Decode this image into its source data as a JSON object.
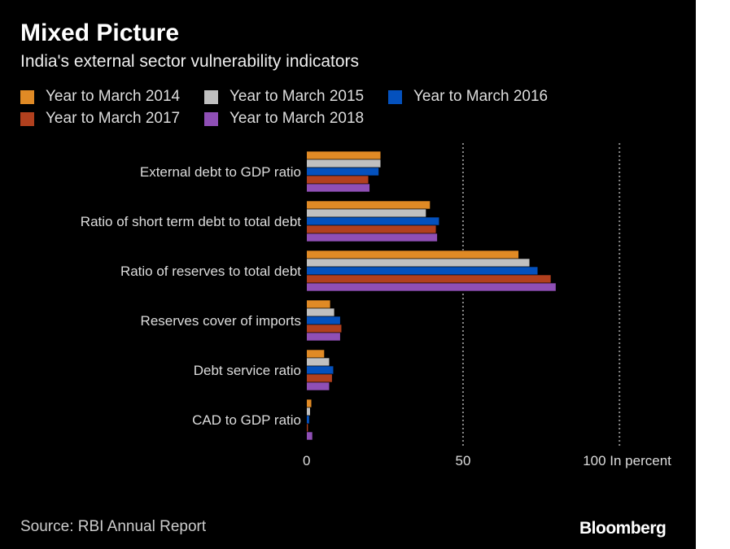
{
  "title": "Mixed Picture",
  "subtitle": "India's external sector vulnerability indicators",
  "source": "Source: RBI Annual Report",
  "logo": "Bloomberg",
  "chart_data": {
    "type": "bar",
    "orientation": "horizontal",
    "title": "Mixed Picture",
    "subtitle": "India's external sector vulnerability indicators",
    "xlabel": "In percent",
    "xlim": [
      0,
      120
    ],
    "xticks": [
      0,
      50,
      100
    ],
    "tick_labels": [
      "0",
      "50",
      "100 In percent"
    ],
    "grid": "vertical dotted at 50 and 100",
    "legend_placement": "top-left",
    "categories": [
      "External debt to GDP ratio",
      "Ratio of short term debt to total debt",
      "Ratio of reserves to total debt",
      "Reserves cover of imports",
      "Debt service ratio",
      "CAD to GDP ratio"
    ],
    "series": [
      {
        "name": "Year to March 2014",
        "color": "#e08a25",
        "values": [
          23.7,
          39.5,
          67.8,
          7.6,
          5.7,
          1.6
        ]
      },
      {
        "name": "Year to March 2015",
        "color": "#c0c0c0",
        "values": [
          23.7,
          38.2,
          71.3,
          8.9,
          7.3,
          1.2
        ]
      },
      {
        "name": "Year to March 2016",
        "color": "#0451bd",
        "values": [
          23.1,
          42.4,
          73.9,
          10.8,
          8.6,
          0.9
        ]
      },
      {
        "name": "Year to March 2017",
        "color": "#b1401e",
        "values": [
          19.8,
          41.4,
          78.1,
          11.2,
          8.2,
          0.5
        ]
      },
      {
        "name": "Year to March 2018",
        "color": "#8f4fb5",
        "values": [
          20.2,
          41.8,
          79.7,
          10.8,
          7.3,
          1.9
        ]
      }
    ]
  }
}
